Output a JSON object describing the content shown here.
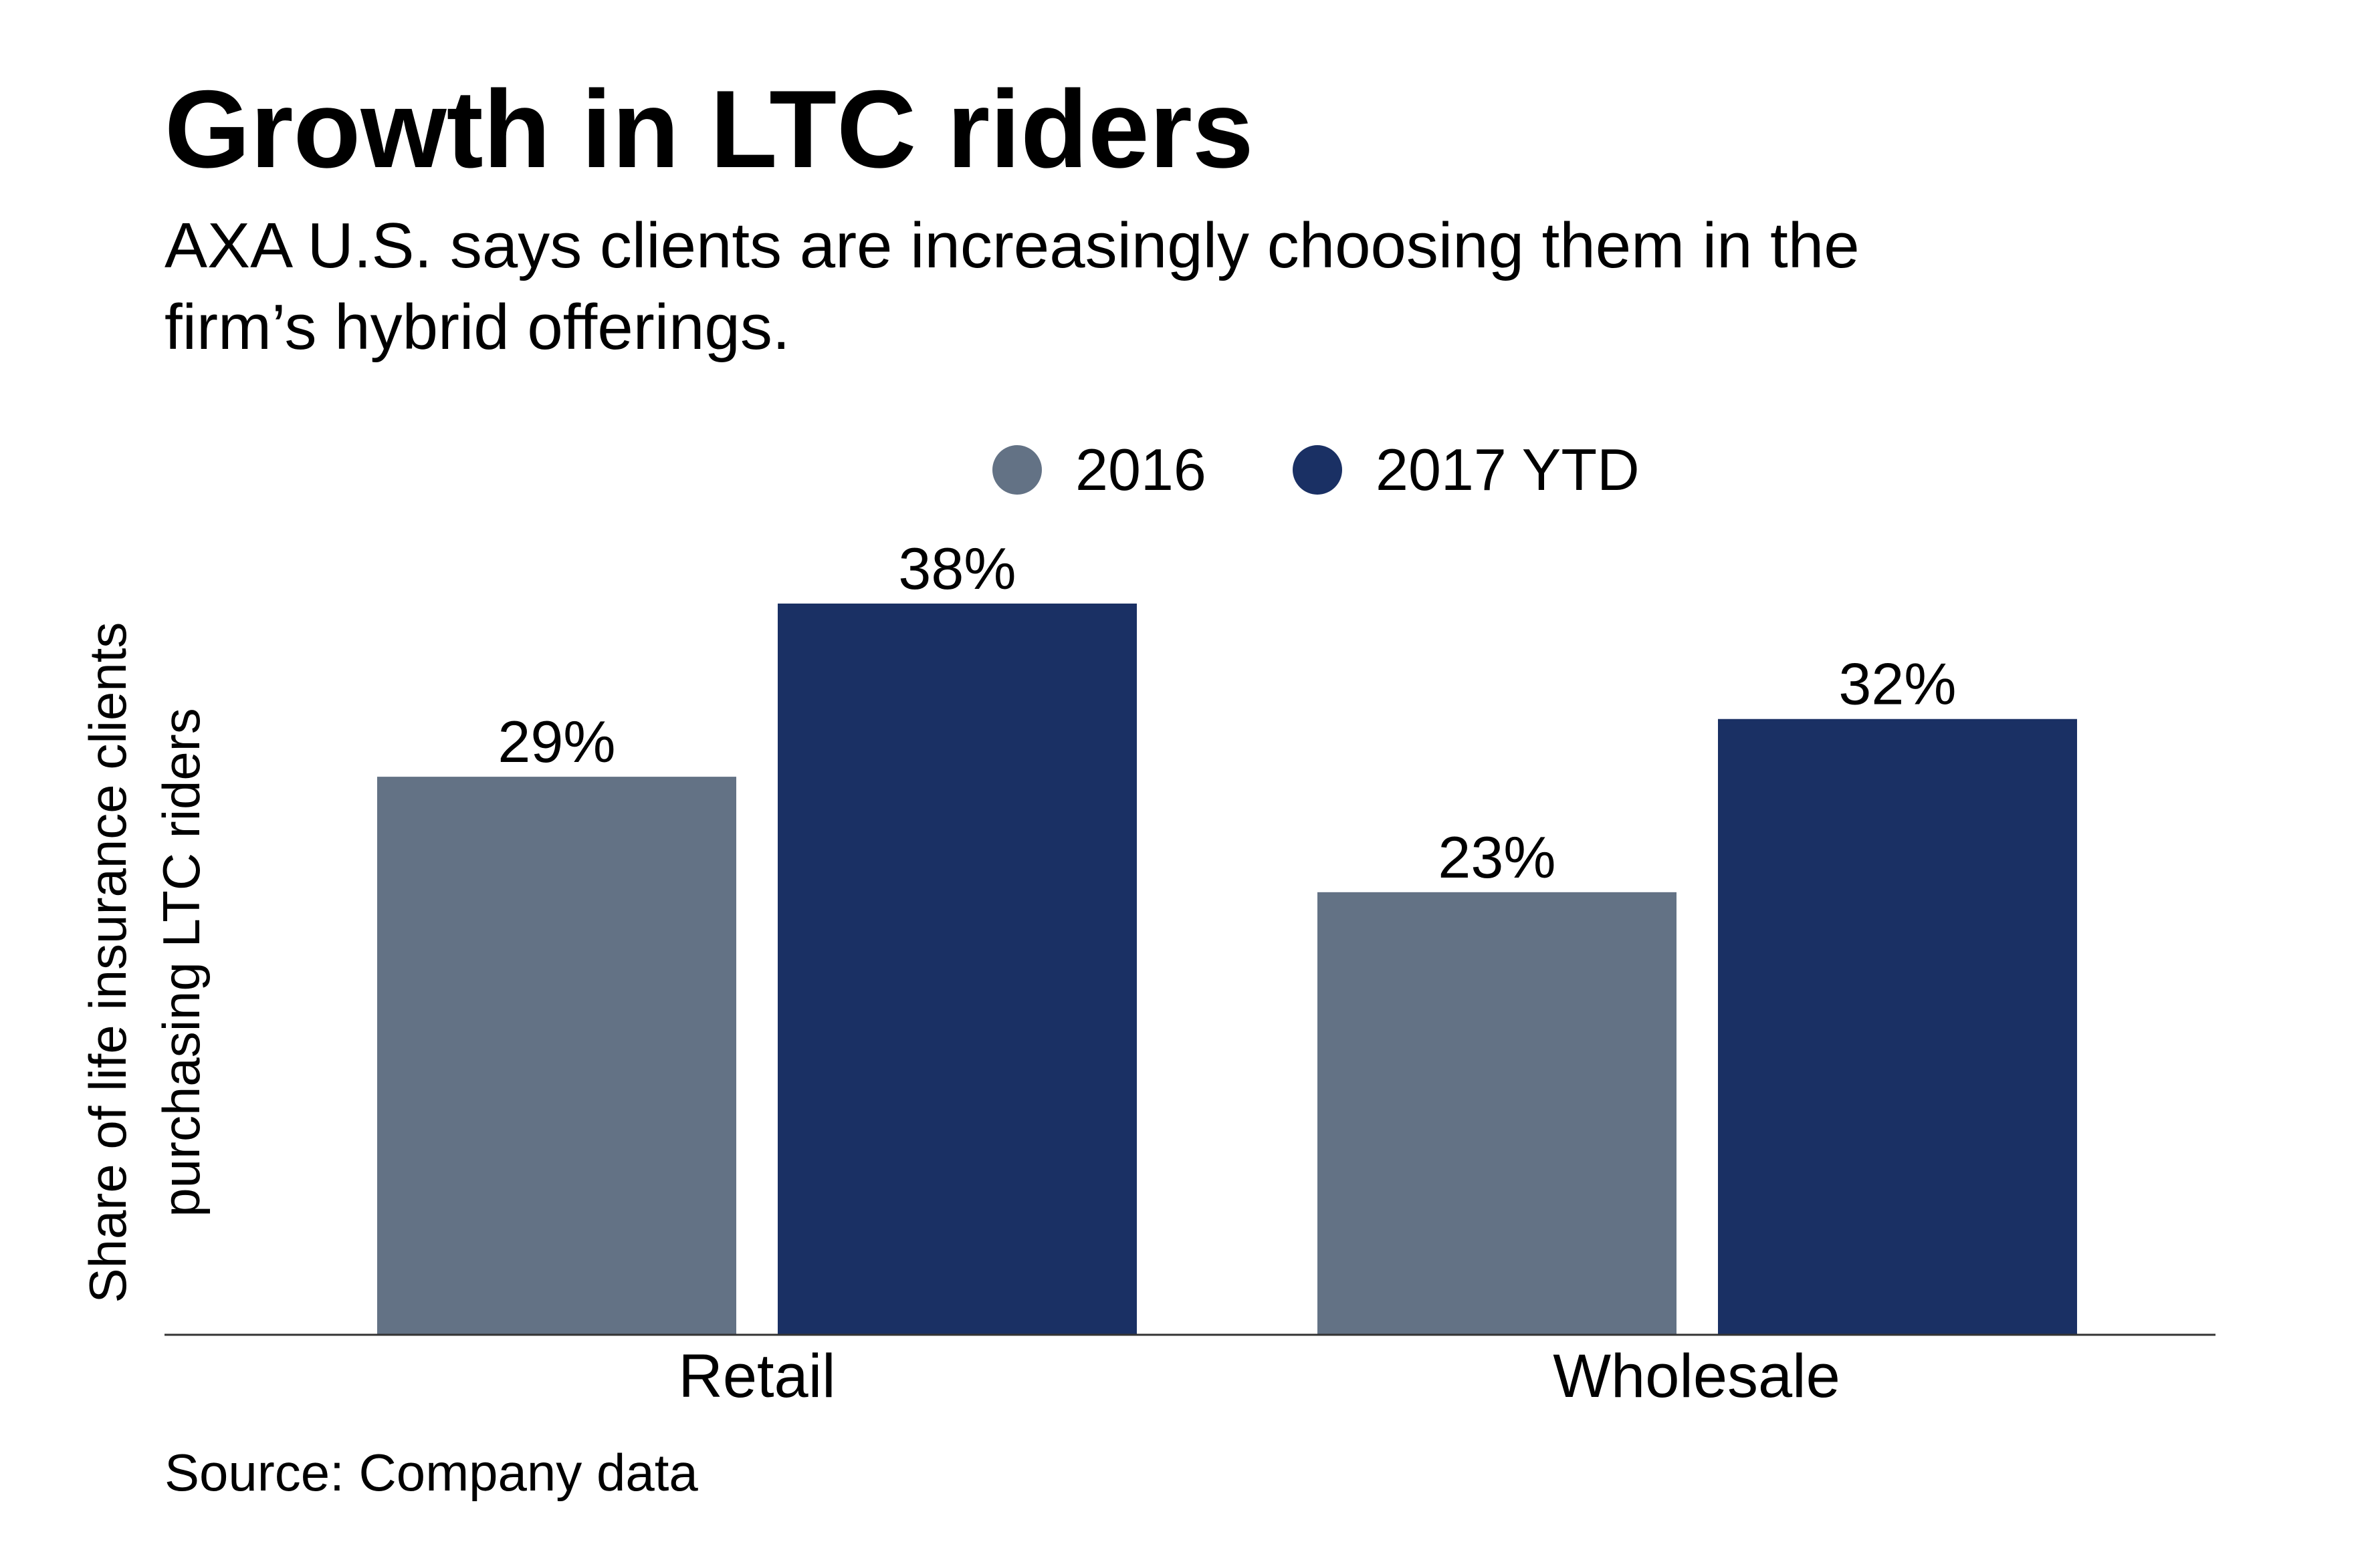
{
  "title": "Growth in LTC riders",
  "subtitle_lines": [
    "AXA U.S. says clients are increasingly choosing them in the",
    "firm’s hybrid offerings."
  ],
  "source": "Source: Company data",
  "colors": {
    "2016": "#637285",
    "2017 YTD": "#1a3064",
    "axis": "#333333"
  },
  "chart_data": {
    "type": "bar",
    "categories": [
      "Retail",
      "Wholesale"
    ],
    "series": [
      {
        "name": "2016",
        "values": [
          29,
          23
        ],
        "labels": [
          "29%",
          "23%"
        ]
      },
      {
        "name": "2017 YTD",
        "values": [
          38,
          32
        ],
        "labels": [
          "38%",
          "32%"
        ]
      }
    ],
    "ylabel_lines": [
      "Share of life insurance clients",
      "purchasing LTC riders"
    ],
    "ylim": [
      0,
      38
    ],
    "grid": false,
    "legend_placement": "top-center",
    "unit": "%"
  }
}
